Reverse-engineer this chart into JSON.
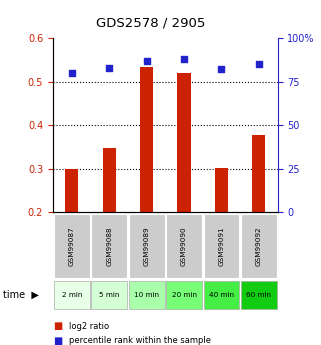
{
  "title": "GDS2578 / 2905",
  "samples": [
    "GSM99087",
    "GSM99088",
    "GSM99089",
    "GSM99090",
    "GSM99091",
    "GSM99092"
  ],
  "time_labels": [
    "2 min",
    "5 min",
    "10 min",
    "20 min",
    "40 min",
    "60 min"
  ],
  "log2_ratio": [
    0.298,
    0.347,
    0.533,
    0.519,
    0.302,
    0.378
  ],
  "percentile_rank_pct": [
    80,
    83,
    87,
    88,
    82,
    85
  ],
  "bar_color": "#cc2200",
  "dot_color": "#2222cc",
  "bar_bottom": 0.2,
  "ylim_left": [
    0.2,
    0.6
  ],
  "ylim_right": [
    0,
    100
  ],
  "yticks_left": [
    0.2,
    0.3,
    0.4,
    0.5,
    0.6
  ],
  "ytick_labels_left": [
    "0.2",
    "0.3",
    "0.4",
    "0.5",
    "0.6"
  ],
  "yticks_right": [
    0,
    25,
    50,
    75,
    100
  ],
  "ytick_labels_right": [
    "0",
    "25",
    "50",
    "75",
    "100%"
  ],
  "dotted_lines": [
    0.3,
    0.4,
    0.5
  ],
  "sample_bg_color": "#cccccc",
  "time_bg_colors": [
    "#e8ffe8",
    "#d4ffd4",
    "#aaffaa",
    "#77ff77",
    "#44ee44",
    "#11cc11"
  ],
  "legend_items": [
    "log2 ratio",
    "percentile rank within the sample"
  ],
  "bar_width": 0.35
}
